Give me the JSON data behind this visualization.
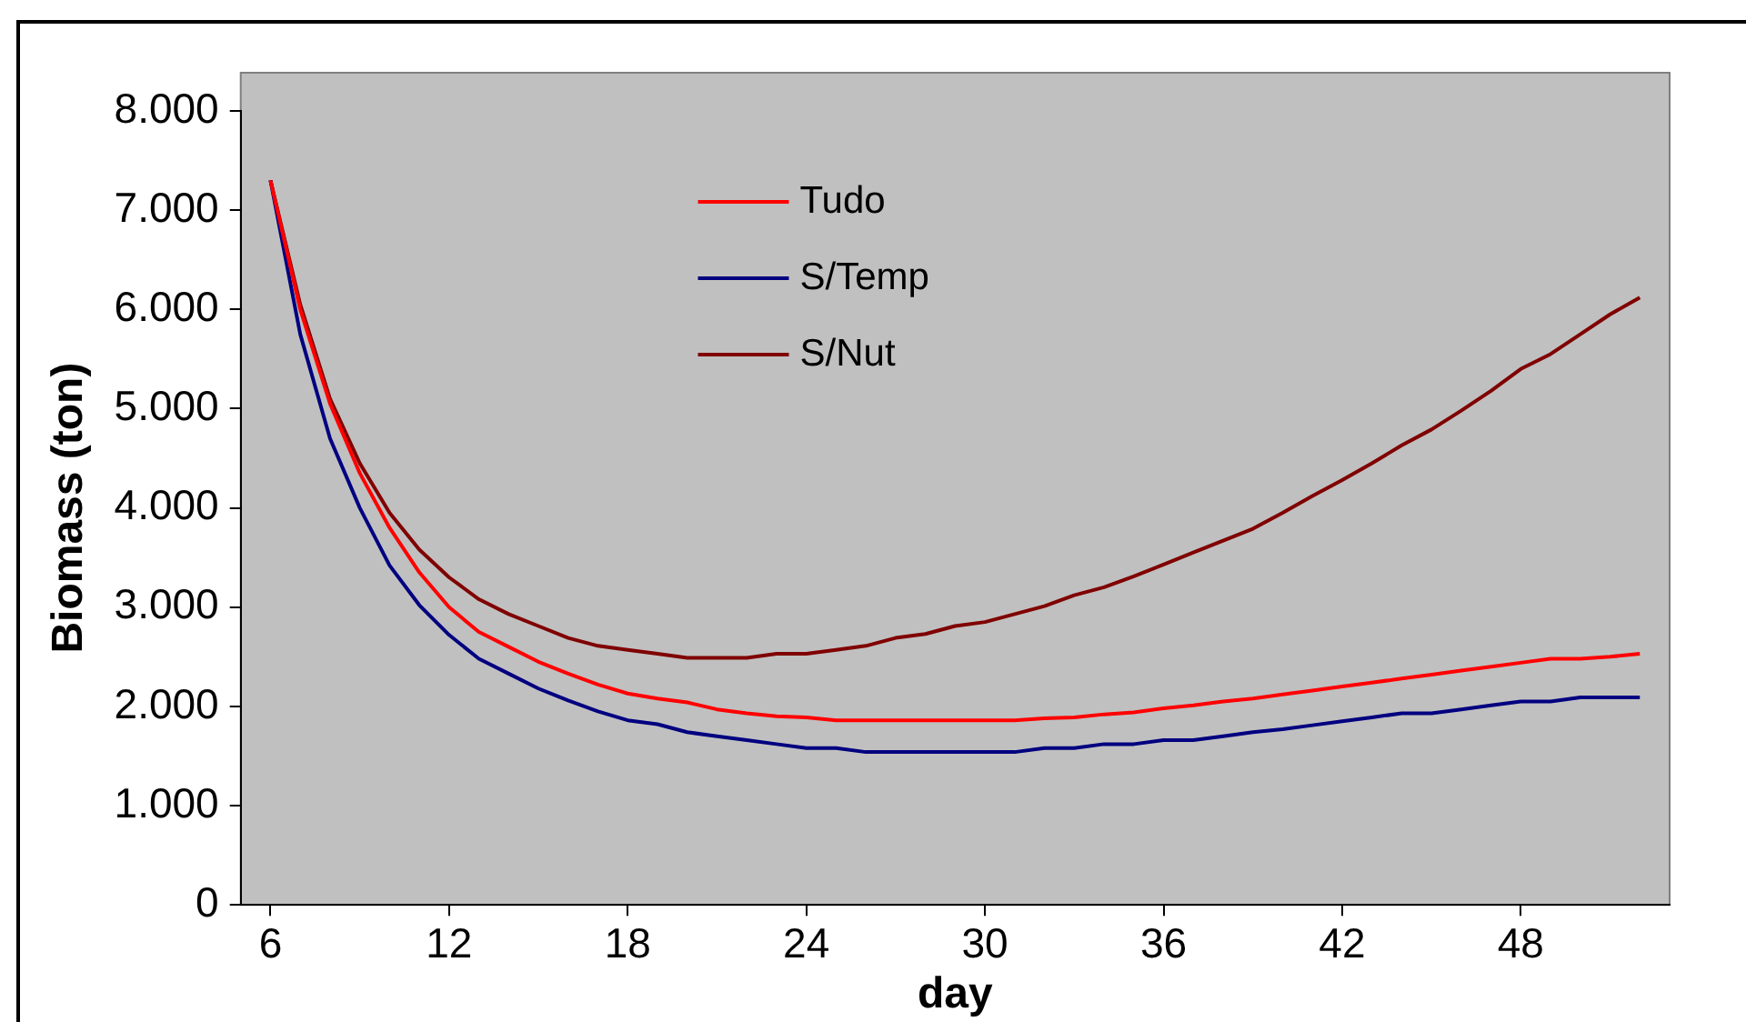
{
  "chart_data": {
    "type": "line",
    "xlabel": "day",
    "ylabel": "Biomass (ton)",
    "x": [
      6,
      7,
      8,
      9,
      10,
      11,
      12,
      13,
      14,
      15,
      16,
      17,
      18,
      19,
      20,
      21,
      22,
      23,
      24,
      25,
      26,
      27,
      28,
      29,
      30,
      31,
      32,
      33,
      34,
      35,
      36,
      37,
      38,
      39,
      40,
      41,
      42,
      43,
      44,
      45,
      46,
      47,
      48,
      49,
      50,
      51,
      52
    ],
    "series": [
      {
        "name": "Tudo",
        "color": "#ff0000",
        "values": [
          7300,
          6000,
          5050,
          4350,
          3800,
          3350,
          3000,
          2750,
          2600,
          2450,
          2330,
          2220,
          2130,
          2080,
          2040,
          1970,
          1930,
          1900,
          1890,
          1860,
          1860,
          1860,
          1860,
          1860,
          1860,
          1860,
          1880,
          1890,
          1920,
          1940,
          1980,
          2010,
          2050,
          2080,
          2120,
          2160,
          2200,
          2240,
          2280,
          2320,
          2360,
          2400,
          2440,
          2480,
          2480,
          2500,
          2530
        ]
      },
      {
        "name": "S/Temp",
        "color": "#000080",
        "values": [
          7300,
          5750,
          4700,
          4000,
          3420,
          3020,
          2720,
          2480,
          2330,
          2180,
          2060,
          1950,
          1860,
          1820,
          1740,
          1700,
          1660,
          1620,
          1580,
          1580,
          1540,
          1540,
          1540,
          1540,
          1540,
          1540,
          1580,
          1580,
          1620,
          1620,
          1660,
          1660,
          1700,
          1740,
          1770,
          1810,
          1850,
          1890,
          1930,
          1930,
          1970,
          2010,
          2050,
          2050,
          2090,
          2090,
          2090
        ]
      },
      {
        "name": "S/Nut",
        "color": "#800000",
        "values": [
          7300,
          6050,
          5100,
          4450,
          3950,
          3580,
          3300,
          3080,
          2930,
          2810,
          2690,
          2610,
          2570,
          2530,
          2490,
          2490,
          2490,
          2530,
          2530,
          2570,
          2610,
          2690,
          2730,
          2810,
          2850,
          2930,
          3010,
          3120,
          3200,
          3310,
          3430,
          3550,
          3670,
          3790,
          3950,
          4120,
          4280,
          4450,
          4630,
          4790,
          4980,
          5180,
          5400,
          5550,
          5750,
          5950,
          6120
        ]
      }
    ],
    "xlim": [
      5,
      53
    ],
    "xticks": [
      6,
      12,
      18,
      24,
      30,
      36,
      42,
      48
    ],
    "ylim": [
      0,
      8000
    ],
    "yticks": [
      {
        "value": 0,
        "label": "0"
      },
      {
        "value": 1000,
        "label": "1.000"
      },
      {
        "value": 2000,
        "label": "2.000"
      },
      {
        "value": 3000,
        "label": "3.000"
      },
      {
        "value": 4000,
        "label": "4.000"
      },
      {
        "value": 5000,
        "label": "5.000"
      },
      {
        "value": 6000,
        "label": "6.000"
      },
      {
        "value": 7000,
        "label": "7.000"
      },
      {
        "value": 8000,
        "label": "8.000"
      }
    ],
    "grid": false,
    "legend": "top",
    "marker": "none",
    "line_style": "solid"
  }
}
